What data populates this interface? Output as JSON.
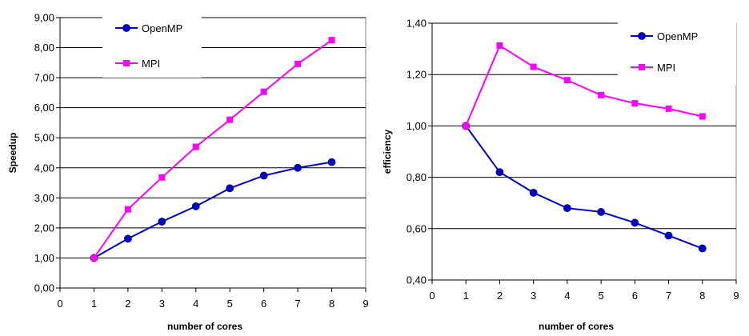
{
  "colors": {
    "openmp": "#0000cc",
    "mpi": "#ff00ff",
    "grid": "#000000",
    "frame": "#808080",
    "background": "#ffffff"
  },
  "chart_data": [
    {
      "type": "line",
      "title": "",
      "xlabel": "number of cores",
      "ylabel": "Speedup",
      "xlim": [
        0,
        9
      ],
      "ylim": [
        0,
        9
      ],
      "xticks": [
        0,
        1,
        2,
        3,
        4,
        5,
        6,
        7,
        8,
        9
      ],
      "xtick_labels": [
        "0",
        "1",
        "2",
        "3",
        "4",
        "5",
        "6",
        "7",
        "8",
        "9"
      ],
      "yticks": [
        0,
        1,
        2,
        3,
        4,
        5,
        6,
        7,
        8,
        9
      ],
      "ytick_labels": [
        "0,00",
        "1,00",
        "2,00",
        "3,00",
        "4,00",
        "5,00",
        "6,00",
        "7,00",
        "8,00",
        "9,00"
      ],
      "grid": "horizontal",
      "legend_position": "top-left",
      "series": [
        {
          "name": "OpenMP",
          "marker": "circle",
          "color_key": "openmp",
          "x": [
            1,
            2,
            3,
            4,
            5,
            6,
            7,
            8
          ],
          "values": [
            1.0,
            1.64,
            2.21,
            2.72,
            3.32,
            3.74,
            4.0,
            4.19
          ]
        },
        {
          "name": "MPI",
          "marker": "square",
          "color_key": "mpi",
          "x": [
            1,
            2,
            3,
            4,
            5,
            6,
            7,
            8
          ],
          "values": [
            1.0,
            2.62,
            3.68,
            4.7,
            5.6,
            6.53,
            7.46,
            8.25
          ]
        }
      ]
    },
    {
      "type": "line",
      "title": "",
      "xlabel": "number of cores",
      "ylabel": "efficiency",
      "xlim": [
        0,
        9
      ],
      "ylim": [
        0.4,
        1.4
      ],
      "xticks": [
        0,
        1,
        2,
        3,
        4,
        5,
        6,
        7,
        8,
        9
      ],
      "xtick_labels": [
        "0",
        "1",
        "2",
        "3",
        "4",
        "5",
        "6",
        "7",
        "8",
        "9"
      ],
      "yticks": [
        0.4,
        0.6,
        0.8,
        1.0,
        1.2,
        1.4
      ],
      "ytick_labels": [
        "0,40",
        "0,60",
        "0,80",
        "1,00",
        "1,20",
        "1,40"
      ],
      "grid": "horizontal",
      "legend_position": "top-right",
      "series": [
        {
          "name": "OpenMP",
          "marker": "circle",
          "color_key": "openmp",
          "x": [
            1,
            2,
            3,
            4,
            5,
            6,
            7,
            8
          ],
          "values": [
            1.0,
            0.82,
            0.74,
            0.68,
            0.665,
            0.623,
            0.573,
            0.523
          ]
        },
        {
          "name": "MPI",
          "marker": "square",
          "color_key": "mpi",
          "x": [
            1,
            2,
            3,
            4,
            5,
            6,
            7,
            8
          ],
          "values": [
            1.0,
            1.313,
            1.23,
            1.178,
            1.12,
            1.088,
            1.067,
            1.037
          ]
        }
      ]
    }
  ]
}
